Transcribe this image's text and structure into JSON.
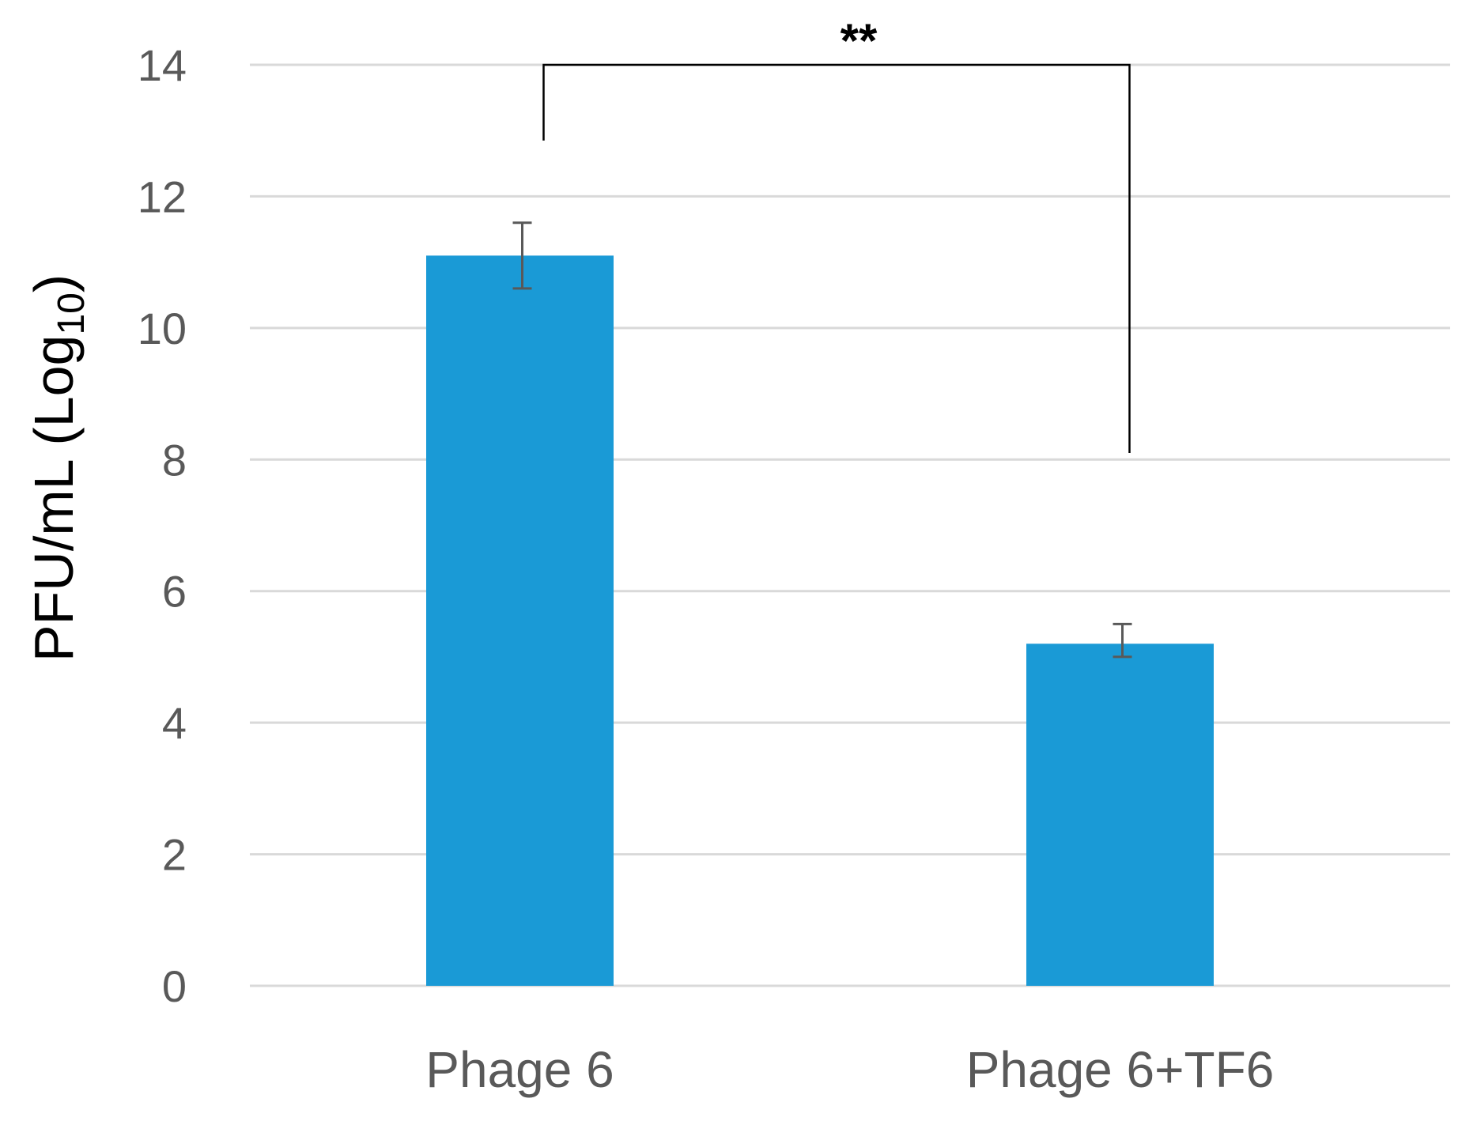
{
  "chart_data": {
    "type": "bar",
    "categories": [
      "Phage 6",
      "Phage 6+TF6"
    ],
    "values": [
      11.1,
      5.2
    ],
    "error_low": [
      10.6,
      5.0
    ],
    "error_high": [
      11.6,
      5.5
    ],
    "ylabel": "PFU/mL (Log",
    "ylabel_subscript": "10",
    "ylabel_close": ")",
    "ylim": [
      0,
      14
    ],
    "yticks": [
      0,
      2,
      4,
      6,
      8,
      10,
      12,
      14
    ],
    "grid": true,
    "bar_color": "#1a9ad6",
    "grid_color": "#d9d9d9",
    "error_color": "#595959",
    "significance": {
      "label": "**",
      "between": [
        0,
        1
      ],
      "bracket_y": 14,
      "left_end_y": 12.85,
      "right_end_y": 8.1
    }
  }
}
